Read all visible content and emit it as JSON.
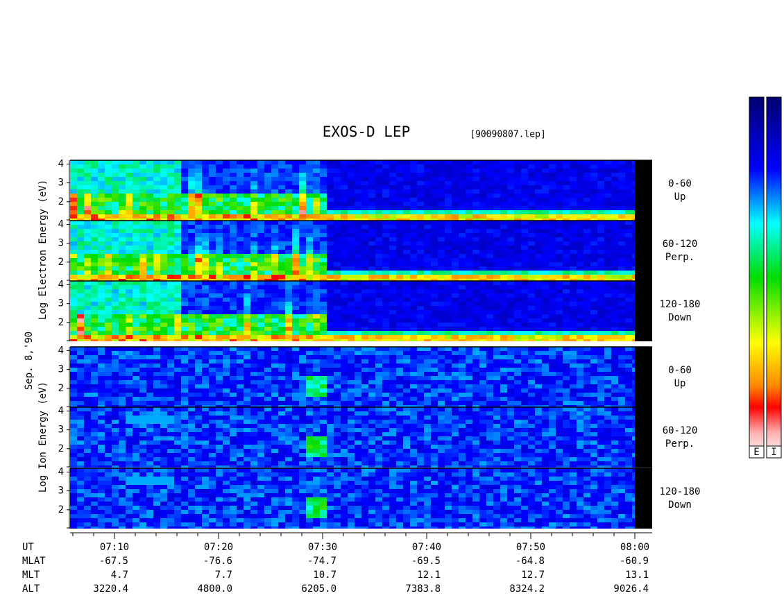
{
  "title": "EXOS-D LEP",
  "file": "[90090807.lep]",
  "date_label": "Sep. 8,'90",
  "electron": {
    "ylabel": "Log Electron Energy (eV)",
    "panels": [
      {
        "range": "0-60",
        "dir": "Up"
      },
      {
        "range": "60-120",
        "dir": "Perp."
      },
      {
        "range": "120-180",
        "dir": "Down"
      }
    ]
  },
  "ion": {
    "ylabel": "Log Ion Energy (eV)",
    "panels": [
      {
        "range": "0-60",
        "dir": "Up"
      },
      {
        "range": "60-120",
        "dir": "Perp."
      },
      {
        "range": "120-180",
        "dir": "Down"
      }
    ]
  },
  "ylim": [
    1,
    4.2
  ],
  "yticks": [
    2,
    3,
    4
  ],
  "time_axis": {
    "rows": [
      "UT",
      "MLAT",
      "MLT",
      "ALT"
    ],
    "columns": [
      [
        "07:10",
        "-67.5",
        "4.7",
        "3220.4"
      ],
      [
        "07:20",
        "-76.6",
        "7.7",
        "4800.0"
      ],
      [
        "07:30",
        "-74.7",
        "10.7",
        "6205.0"
      ],
      [
        "07:40",
        "-69.5",
        "12.1",
        "7383.8"
      ],
      [
        "07:50",
        "-64.8",
        "12.7",
        "8324.2"
      ],
      [
        "08:00",
        "-60.9",
        "13.1",
        "9026.4"
      ]
    ]
  },
  "colorbar_labels": [
    "E",
    "I"
  ]
}
